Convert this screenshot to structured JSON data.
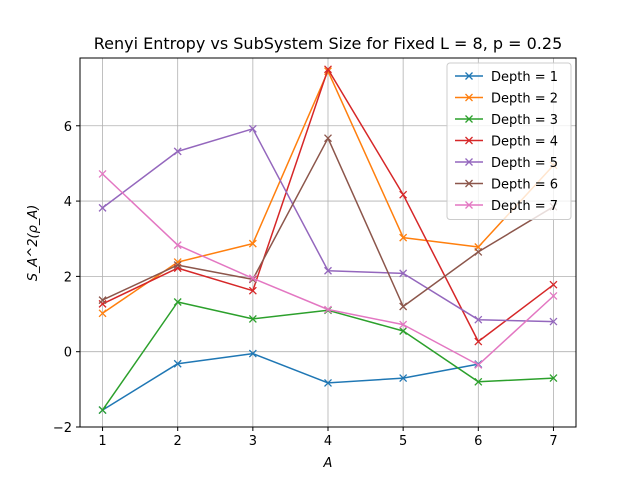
{
  "chart_data": {
    "type": "line",
    "title": "Renyi Entropy vs SubSystem Size for Fixed L = 8, p = 0.25",
    "xlabel": "A",
    "ylabel": "S_A^2(ρ_A)",
    "x": [
      1,
      2,
      3,
      4,
      5,
      6,
      7
    ],
    "xlim": [
      0.7,
      7.3
    ],
    "ylim": [
      -2.0,
      7.8
    ],
    "xticks": [
      1,
      2,
      3,
      4,
      5,
      6,
      7
    ],
    "yticks": [
      -2,
      0,
      2,
      4,
      6
    ],
    "grid": true,
    "legend_position": "top-right",
    "marker": "x",
    "series": [
      {
        "name": "Depth = 1",
        "color": "#1f77b4",
        "values": [
          -1.55,
          -0.32,
          -0.05,
          -0.83,
          -0.7,
          -0.33,
          null
        ]
      },
      {
        "name": "Depth = 2",
        "color": "#ff7f0e",
        "values": [
          1.02,
          2.38,
          2.87,
          7.45,
          3.03,
          2.78,
          4.95
        ]
      },
      {
        "name": "Depth = 3",
        "color": "#2ca02c",
        "values": [
          -1.55,
          1.32,
          0.87,
          1.1,
          0.55,
          -0.8,
          -0.7
        ]
      },
      {
        "name": "Depth = 4",
        "color": "#d62728",
        "values": [
          1.27,
          2.22,
          1.62,
          7.5,
          4.17,
          0.27,
          1.78
        ]
      },
      {
        "name": "Depth = 5",
        "color": "#9467bd",
        "values": [
          3.82,
          5.32,
          5.92,
          2.15,
          2.08,
          0.85,
          0.8
        ]
      },
      {
        "name": "Depth = 6",
        "color": "#8c564b",
        "values": [
          1.37,
          2.3,
          1.92,
          5.67,
          1.2,
          2.65,
          3.85
        ]
      },
      {
        "name": "Depth = 7",
        "color": "#e377c2",
        "values": [
          4.72,
          2.83,
          1.95,
          1.12,
          0.72,
          -0.35,
          1.48
        ]
      }
    ]
  }
}
